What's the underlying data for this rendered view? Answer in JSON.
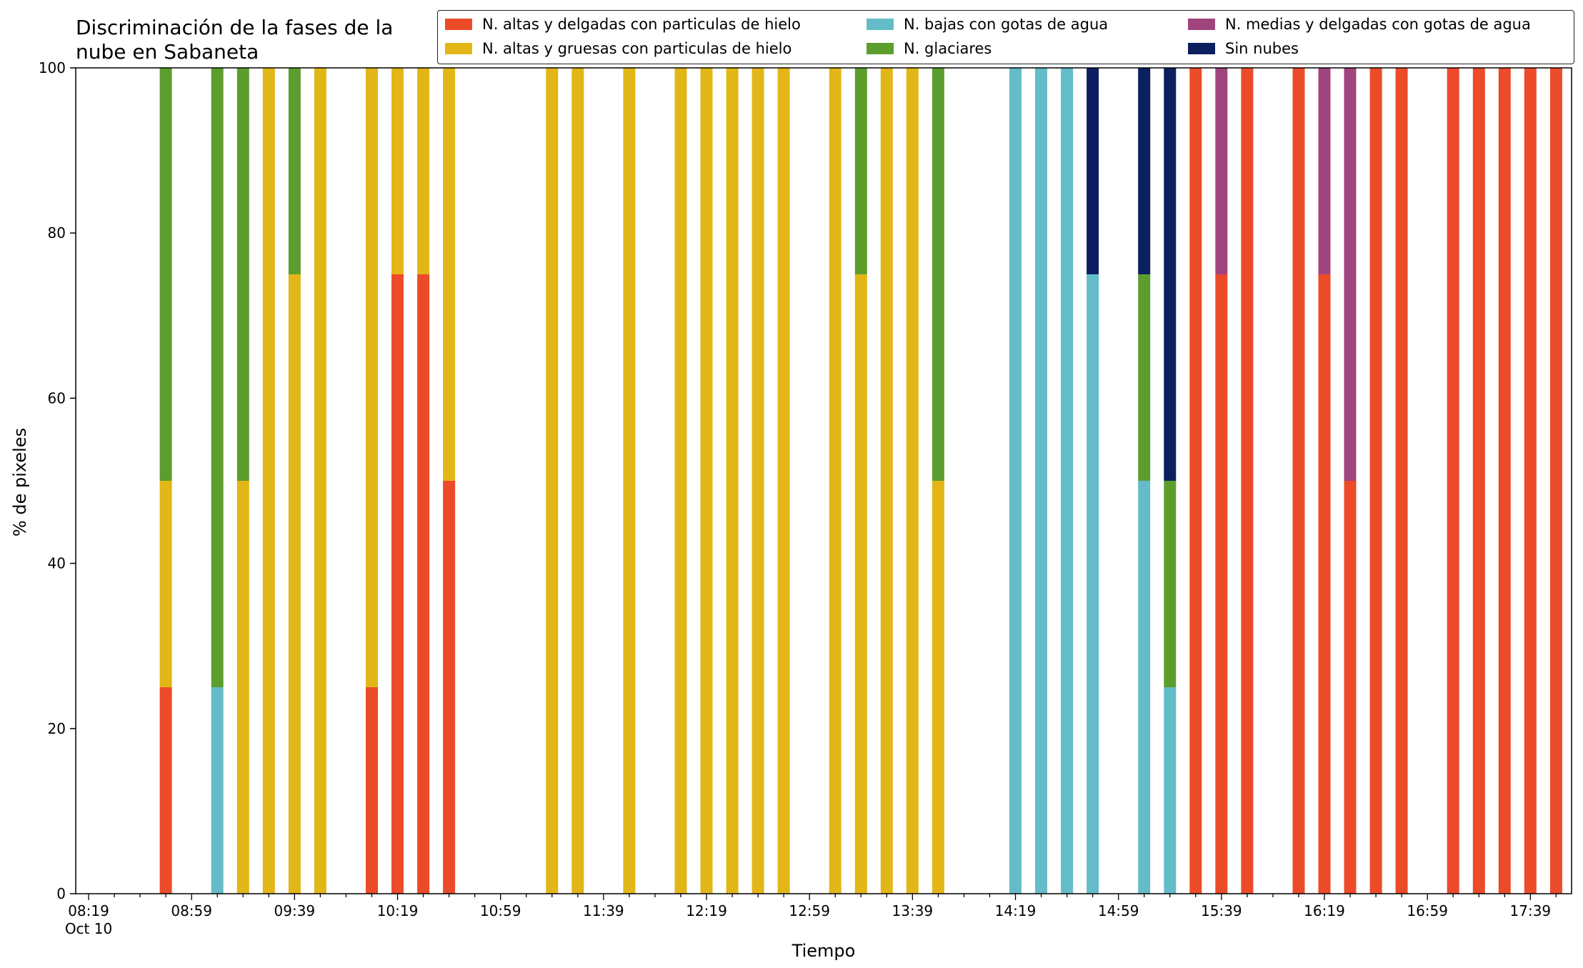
{
  "chart_data": {
    "type": "bar",
    "stacked": true,
    "title_lines": [
      "Discriminación de la fases de la",
      "nube en Sabaneta"
    ],
    "xlabel": "Tiempo",
    "ylabel": "% de pixeles",
    "ylim": [
      0,
      100
    ],
    "y_ticks": [
      0,
      20,
      40,
      60,
      80,
      100
    ],
    "x_range_minutes": [
      "08:14",
      "17:55"
    ],
    "x_tick_labels": [
      "08:19",
      "08:59",
      "09:39",
      "10:19",
      "10:59",
      "11:39",
      "12:19",
      "12:59",
      "13:39",
      "14:19",
      "14:59",
      "15:39",
      "16:19",
      "16:59",
      "17:39"
    ],
    "x_first_tick_sublabel": "Oct 10",
    "grid": false,
    "legend_position": "top-right",
    "series": [
      {
        "key": "altas_delgadas",
        "name": "N. altas y delgadas con particulas de hielo",
        "color": "#ec4b2a"
      },
      {
        "key": "altas_gruesas",
        "name": "N. altas y gruesas con particulas de hielo",
        "color": "#e2b617"
      },
      {
        "key": "bajas",
        "name": "N. bajas con gotas de agua",
        "color": "#64bcc8"
      },
      {
        "key": "glaciares",
        "name": "N. glaciares",
        "color": "#5c9e2d"
      },
      {
        "key": "medias",
        "name": "N. medias y delgadas con gotas de agua",
        "color": "#a0447d"
      },
      {
        "key": "sin_nubes",
        "name": "Sin nubes",
        "color": "#0c2060"
      }
    ],
    "bars": [
      {
        "time": "08:49",
        "segments": [
          [
            "altas_delgadas",
            25
          ],
          [
            "altas_gruesas",
            25
          ],
          [
            "glaciares",
            50
          ]
        ]
      },
      {
        "time": "09:09",
        "segments": [
          [
            "bajas",
            25
          ],
          [
            "glaciares",
            75
          ]
        ]
      },
      {
        "time": "09:19",
        "segments": [
          [
            "altas_gruesas",
            50
          ],
          [
            "glaciares",
            50
          ]
        ]
      },
      {
        "time": "09:29",
        "segments": [
          [
            "altas_gruesas",
            100
          ]
        ]
      },
      {
        "time": "09:39",
        "segments": [
          [
            "altas_gruesas",
            75
          ],
          [
            "glaciares",
            25
          ]
        ]
      },
      {
        "time": "09:49",
        "segments": [
          [
            "altas_gruesas",
            100
          ]
        ]
      },
      {
        "time": "10:09",
        "segments": [
          [
            "altas_delgadas",
            25
          ],
          [
            "altas_gruesas",
            75
          ]
        ]
      },
      {
        "time": "10:19",
        "segments": [
          [
            "altas_delgadas",
            75
          ],
          [
            "altas_gruesas",
            25
          ]
        ]
      },
      {
        "time": "10:29",
        "segments": [
          [
            "altas_delgadas",
            75
          ],
          [
            "altas_gruesas",
            25
          ]
        ]
      },
      {
        "time": "10:39",
        "segments": [
          [
            "altas_delgadas",
            50
          ],
          [
            "altas_gruesas",
            50
          ]
        ]
      },
      {
        "time": "11:19",
        "segments": [
          [
            "altas_gruesas",
            100
          ]
        ]
      },
      {
        "time": "11:29",
        "segments": [
          [
            "altas_gruesas",
            100
          ]
        ]
      },
      {
        "time": "11:49",
        "segments": [
          [
            "altas_gruesas",
            100
          ]
        ]
      },
      {
        "time": "12:09",
        "segments": [
          [
            "altas_gruesas",
            100
          ]
        ]
      },
      {
        "time": "12:19",
        "segments": [
          [
            "altas_gruesas",
            100
          ]
        ]
      },
      {
        "time": "12:29",
        "segments": [
          [
            "altas_gruesas",
            100
          ]
        ]
      },
      {
        "time": "12:39",
        "segments": [
          [
            "altas_gruesas",
            100
          ]
        ]
      },
      {
        "time": "12:49",
        "segments": [
          [
            "altas_gruesas",
            100
          ]
        ]
      },
      {
        "time": "13:09",
        "segments": [
          [
            "altas_gruesas",
            100
          ]
        ]
      },
      {
        "time": "13:19",
        "segments": [
          [
            "altas_gruesas",
            75
          ],
          [
            "glaciares",
            25
          ]
        ]
      },
      {
        "time": "13:29",
        "segments": [
          [
            "altas_gruesas",
            100
          ]
        ]
      },
      {
        "time": "13:39",
        "segments": [
          [
            "altas_gruesas",
            100
          ]
        ]
      },
      {
        "time": "13:49",
        "segments": [
          [
            "altas_gruesas",
            50
          ],
          [
            "glaciares",
            50
          ]
        ]
      },
      {
        "time": "14:19",
        "segments": [
          [
            "bajas",
            100
          ]
        ]
      },
      {
        "time": "14:29",
        "segments": [
          [
            "bajas",
            100
          ]
        ]
      },
      {
        "time": "14:39",
        "segments": [
          [
            "bajas",
            100
          ]
        ]
      },
      {
        "time": "14:49",
        "segments": [
          [
            "bajas",
            75
          ],
          [
            "sin_nubes",
            25
          ]
        ]
      },
      {
        "time": "15:09",
        "segments": [
          [
            "bajas",
            50
          ],
          [
            "glaciares",
            25
          ],
          [
            "sin_nubes",
            25
          ]
        ]
      },
      {
        "time": "15:19",
        "segments": [
          [
            "bajas",
            25
          ],
          [
            "glaciares",
            25
          ],
          [
            "sin_nubes",
            50
          ]
        ]
      },
      {
        "time": "15:29",
        "segments": [
          [
            "altas_delgadas",
            100
          ]
        ]
      },
      {
        "time": "15:39",
        "segments": [
          [
            "altas_delgadas",
            75
          ],
          [
            "medias",
            25
          ]
        ]
      },
      {
        "time": "15:49",
        "segments": [
          [
            "altas_delgadas",
            100
          ]
        ]
      },
      {
        "time": "16:09",
        "segments": [
          [
            "altas_delgadas",
            100
          ]
        ]
      },
      {
        "time": "16:19",
        "segments": [
          [
            "altas_delgadas",
            75
          ],
          [
            "medias",
            25
          ]
        ]
      },
      {
        "time": "16:29",
        "segments": [
          [
            "altas_delgadas",
            50
          ],
          [
            "medias",
            50
          ]
        ]
      },
      {
        "time": "16:39",
        "segments": [
          [
            "altas_delgadas",
            100
          ]
        ]
      },
      {
        "time": "16:49",
        "segments": [
          [
            "altas_delgadas",
            100
          ]
        ]
      },
      {
        "time": "17:09",
        "segments": [
          [
            "altas_delgadas",
            100
          ]
        ]
      },
      {
        "time": "17:19",
        "segments": [
          [
            "altas_delgadas",
            100
          ]
        ]
      },
      {
        "time": "17:29",
        "segments": [
          [
            "altas_delgadas",
            100
          ]
        ]
      },
      {
        "time": "17:39",
        "segments": [
          [
            "altas_delgadas",
            100
          ]
        ]
      },
      {
        "time": "17:49",
        "segments": [
          [
            "altas_delgadas",
            100
          ]
        ]
      }
    ]
  }
}
